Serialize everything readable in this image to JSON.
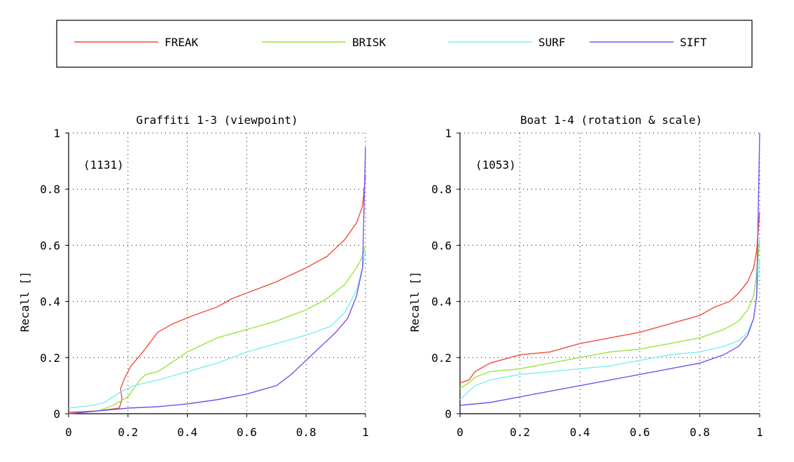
{
  "legend": {
    "placement": "top",
    "items": [
      {
        "label": "FREAK",
        "color": "#f04c3c"
      },
      {
        "label": "BRISK",
        "color": "#96e63c"
      },
      {
        "label": "SURF",
        "color": "#78f0f0"
      },
      {
        "label": "SIFT",
        "color": "#7850f0"
      }
    ]
  },
  "chart_data": [
    {
      "type": "line",
      "title": "Graffiti 1-3 (viewpoint)",
      "xlabel": "",
      "ylabel": "Recall []",
      "annotation": "(1131)",
      "xlim": [
        0,
        1
      ],
      "ylim": [
        0,
        1
      ],
      "grid": true,
      "x_ticks": [
        "0",
        "0.2",
        "0.4",
        "0.6",
        "0.8",
        "1"
      ],
      "y_ticks": [
        "0",
        "0.2",
        "0.4",
        "0.6",
        "0.8",
        "1"
      ],
      "series": [
        {
          "name": "FREAK",
          "color": "#f04c3c",
          "x": [
            0.0,
            0.1,
            0.17,
            0.18,
            0.175,
            0.19,
            0.21,
            0.25,
            0.3,
            0.35,
            0.42,
            0.5,
            0.55,
            0.6,
            0.7,
            0.8,
            0.87,
            0.93,
            0.97,
            0.99,
            1.0
          ],
          "y": [
            0.005,
            0.01,
            0.02,
            0.05,
            0.09,
            0.13,
            0.17,
            0.22,
            0.29,
            0.32,
            0.35,
            0.38,
            0.41,
            0.43,
            0.47,
            0.52,
            0.56,
            0.62,
            0.68,
            0.74,
            0.85
          ]
        },
        {
          "name": "BRISK",
          "color": "#96e63c",
          "x": [
            0.0,
            0.1,
            0.15,
            0.2,
            0.22,
            0.24,
            0.26,
            0.3,
            0.33,
            0.4,
            0.5,
            0.6,
            0.7,
            0.8,
            0.87,
            0.93,
            0.97,
            0.99,
            1.0
          ],
          "y": [
            0.0,
            0.01,
            0.03,
            0.06,
            0.09,
            0.12,
            0.14,
            0.15,
            0.17,
            0.22,
            0.27,
            0.3,
            0.33,
            0.37,
            0.41,
            0.46,
            0.52,
            0.56,
            0.6
          ]
        },
        {
          "name": "SURF",
          "color": "#78f0f0",
          "x": [
            0.0,
            0.08,
            0.12,
            0.15,
            0.18,
            0.22,
            0.3,
            0.4,
            0.5,
            0.6,
            0.7,
            0.8,
            0.88,
            0.93,
            0.97,
            0.99,
            1.0
          ],
          "y": [
            0.02,
            0.03,
            0.04,
            0.06,
            0.08,
            0.1,
            0.12,
            0.15,
            0.18,
            0.22,
            0.25,
            0.28,
            0.31,
            0.36,
            0.44,
            0.52,
            0.58
          ]
        },
        {
          "name": "SIFT",
          "color": "#7850f0",
          "x": [
            0.0,
            0.1,
            0.2,
            0.3,
            0.4,
            0.5,
            0.6,
            0.7,
            0.75,
            0.8,
            0.85,
            0.9,
            0.94,
            0.97,
            0.99,
            1.0
          ],
          "y": [
            0.0,
            0.01,
            0.02,
            0.025,
            0.035,
            0.05,
            0.07,
            0.1,
            0.14,
            0.19,
            0.24,
            0.29,
            0.34,
            0.42,
            0.52,
            0.95
          ]
        }
      ]
    },
    {
      "type": "line",
      "title": "Boat 1-4 (rotation & scale)",
      "xlabel": "",
      "ylabel": "Recall []",
      "annotation": "(1053)",
      "xlim": [
        0,
        1
      ],
      "ylim": [
        0,
        1
      ],
      "grid": true,
      "x_ticks": [
        "0",
        "0.2",
        "0.4",
        "0.6",
        "0.8",
        "1"
      ],
      "y_ticks": [
        "0",
        "0.2",
        "0.4",
        "0.6",
        "0.8",
        "1"
      ],
      "series": [
        {
          "name": "FREAK",
          "color": "#f04c3c",
          "x": [
            0.0,
            0.03,
            0.05,
            0.1,
            0.2,
            0.3,
            0.4,
            0.5,
            0.6,
            0.7,
            0.8,
            0.85,
            0.9,
            0.93,
            0.96,
            0.98,
            0.99,
            1.0
          ],
          "y": [
            0.11,
            0.12,
            0.15,
            0.18,
            0.21,
            0.22,
            0.25,
            0.27,
            0.29,
            0.32,
            0.35,
            0.38,
            0.4,
            0.43,
            0.47,
            0.52,
            0.58,
            0.72
          ]
        },
        {
          "name": "BRISK",
          "color": "#96e63c",
          "x": [
            0.0,
            0.03,
            0.05,
            0.1,
            0.2,
            0.3,
            0.4,
            0.5,
            0.6,
            0.7,
            0.8,
            0.88,
            0.93,
            0.96,
            0.98,
            0.99,
            1.0
          ],
          "y": [
            0.09,
            0.11,
            0.13,
            0.15,
            0.16,
            0.18,
            0.2,
            0.22,
            0.23,
            0.25,
            0.27,
            0.3,
            0.33,
            0.37,
            0.42,
            0.5,
            0.62
          ]
        },
        {
          "name": "SURF",
          "color": "#78f0f0",
          "x": [
            0.0,
            0.03,
            0.05,
            0.1,
            0.2,
            0.3,
            0.4,
            0.5,
            0.6,
            0.7,
            0.8,
            0.88,
            0.93,
            0.96,
            0.98,
            0.99,
            1.0
          ],
          "y": [
            0.05,
            0.08,
            0.1,
            0.12,
            0.14,
            0.15,
            0.16,
            0.17,
            0.19,
            0.21,
            0.22,
            0.24,
            0.26,
            0.29,
            0.34,
            0.42,
            0.55
          ]
        },
        {
          "name": "SIFT",
          "color": "#7850f0",
          "x": [
            0.0,
            0.05,
            0.1,
            0.2,
            0.3,
            0.4,
            0.5,
            0.6,
            0.7,
            0.8,
            0.88,
            0.93,
            0.96,
            0.98,
            0.99,
            1.0
          ],
          "y": [
            0.03,
            0.035,
            0.04,
            0.06,
            0.08,
            0.1,
            0.12,
            0.14,
            0.16,
            0.18,
            0.21,
            0.24,
            0.28,
            0.34,
            0.42,
            1.0
          ]
        }
      ]
    }
  ]
}
